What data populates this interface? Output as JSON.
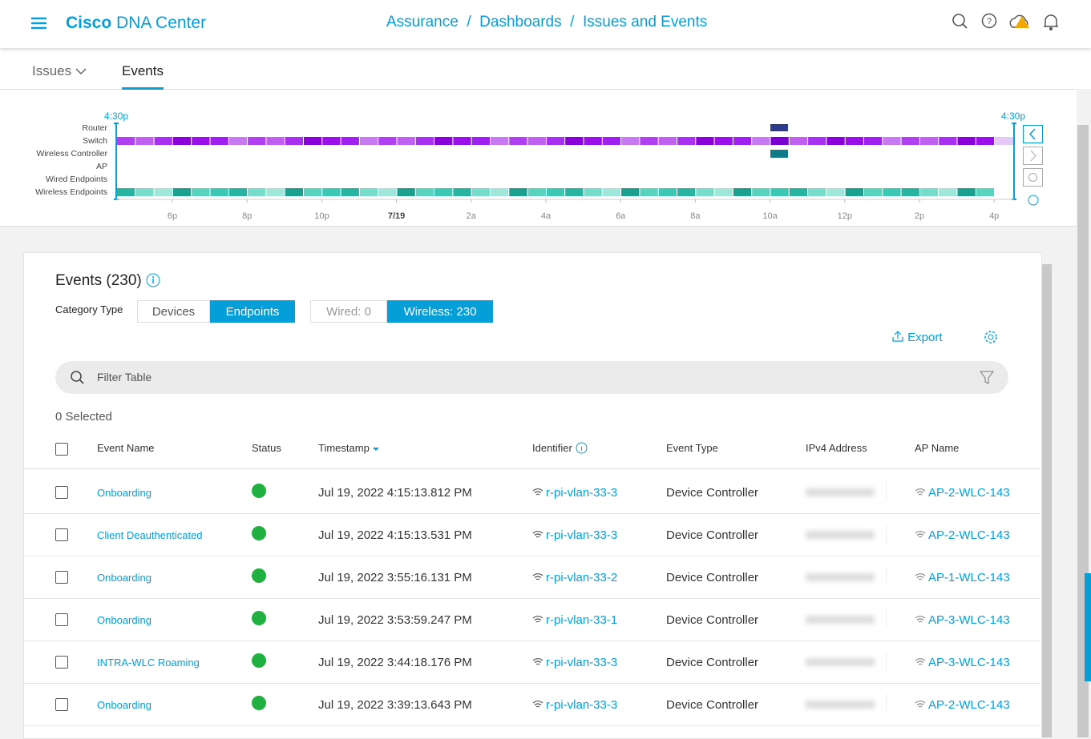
{
  "header": {
    "brand_bold": "Cisco",
    "brand": "DNA Center",
    "breadcrumb": "Assurance  /  Dashboards  /  Issues and Events"
  },
  "tabs": [
    "Issues",
    "Events"
  ],
  "timeline": {
    "start_label": "4:30p",
    "end_label": "4:30p",
    "rows": [
      "Router",
      "Switch",
      "Wireless Controller",
      "AP",
      "Wired Endpoints",
      "Wireless Endpoints"
    ],
    "ticks": [
      "6p",
      "8p",
      "10p",
      "7/19",
      "2a",
      "4a",
      "6a",
      "8a",
      "10a",
      "12p",
      "2p",
      "4p"
    ]
  },
  "events": {
    "title": "Events (230)",
    "category_label": "Category Type",
    "category_buttons": [
      "Devices",
      "Endpoints"
    ],
    "connection_buttons": [
      "Wired: 0",
      "Wireless: 230"
    ],
    "export": "Export",
    "filter_placeholder": "Filter Table",
    "selected": "0 Selected",
    "columns": [
      "Event Name",
      "Status",
      "Timestamp",
      "Identifier",
      "Event Type",
      "IPv4 Address",
      "AP Name"
    ],
    "rows": [
      [
        "Onboarding",
        "Jul 19, 2022 4:15:13.812 PM",
        "r-pi-vlan-33-3",
        "Device Controller",
        "AP-2-WLC-143"
      ],
      [
        "Client Deauthenticated",
        "Jul 19, 2022 4:15:13.531 PM",
        "r-pi-vlan-33-3",
        "Device Controller",
        "AP-2-WLC-143"
      ],
      [
        "Onboarding",
        "Jul 19, 2022 3:55:16.131 PM",
        "r-pi-vlan-33-2",
        "Device Controller",
        "AP-1-WLC-143"
      ],
      [
        "Onboarding",
        "Jul 19, 2022 3:53:59.247 PM",
        "r-pi-vlan-33-1",
        "Device Controller",
        "AP-3-WLC-143"
      ],
      [
        "INTRA-WLC Roaming",
        "Jul 19, 2022 3:44:18.176 PM",
        "r-pi-vlan-33-3",
        "Device Controller",
        "AP-3-WLC-143"
      ],
      [
        "Onboarding",
        "Jul 19, 2022 3:39:13.643 PM",
        "r-pi-vlan-33-3",
        "Device Controller",
        "AP-2-WLC-143"
      ]
    ]
  }
}
